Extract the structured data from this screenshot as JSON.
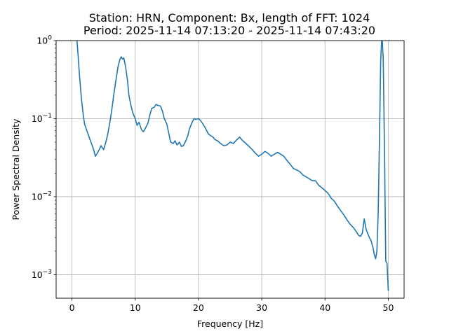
{
  "chart_data": {
    "type": "line",
    "title_line1": "Station: HRN, Component: Bx, length of FFT: 1024",
    "title_line2": "Period: 2025-11-14 07:13:20 - 2025-11-14 07:43:20",
    "xlabel": "Frequency [Hz]",
    "ylabel": "Power Spectral Density",
    "xscale": "linear",
    "yscale": "log",
    "xlim": [
      -2.5,
      52.5
    ],
    "ylim": [
      0.0005,
      1
    ],
    "grid": true,
    "line_color": "#1f77b4",
    "xticks": [
      {
        "value": 0,
        "label": "0"
      },
      {
        "value": 10,
        "label": "10"
      },
      {
        "value": 20,
        "label": "20"
      },
      {
        "value": 30,
        "label": "30"
      },
      {
        "value": 40,
        "label": "40"
      },
      {
        "value": 50,
        "label": "50"
      }
    ],
    "yticks": [
      {
        "value": 0.001,
        "base": "10",
        "exp": "−3"
      },
      {
        "value": 0.01,
        "base": "10",
        "exp": "−2"
      },
      {
        "value": 0.1,
        "base": "10",
        "exp": "−1"
      },
      {
        "value": 1,
        "base": "10",
        "exp": "0"
      }
    ],
    "series": [
      {
        "x": [
          0.8,
          1.0,
          1.2,
          1.5,
          1.8,
          2.0,
          2.5,
          3.0,
          3.3,
          3.5,
          3.7,
          4.0,
          4.3,
          4.6,
          5.0,
          5.3,
          5.6,
          6.0,
          6.3,
          6.6,
          7.0,
          7.3,
          7.6,
          7.8,
          8.0,
          8.2,
          8.5,
          8.8,
          9.0,
          9.3,
          9.6,
          10.0,
          10.3,
          10.6,
          11.0,
          11.3,
          11.6,
          12.0,
          12.3,
          12.6,
          13.0,
          13.3,
          13.6,
          14.0,
          14.3,
          14.6,
          15.0,
          15.3,
          15.6,
          16.0,
          16.3,
          16.6,
          17.0,
          17.3,
          17.6,
          18.0,
          18.3,
          18.6,
          19.0,
          19.3,
          19.6,
          20.0,
          20.3,
          20.6,
          21.0,
          21.3,
          21.6,
          22.0,
          22.3,
          22.6,
          23.0,
          23.5,
          24.0,
          24.5,
          25.0,
          25.5,
          26.0,
          26.5,
          27.0,
          27.5,
          28.0,
          28.5,
          29.0,
          29.5,
          30.0,
          30.5,
          31.0,
          31.5,
          32.0,
          32.5,
          33.0,
          33.5,
          34.0,
          34.5,
          35.0,
          35.5,
          36.0,
          36.5,
          37.0,
          37.5,
          38.0,
          38.5,
          39.0,
          39.5,
          40.0,
          40.5,
          41.0,
          41.5,
          42.0,
          42.5,
          43.0,
          43.5,
          44.0,
          44.5,
          45.0,
          45.3,
          45.6,
          45.9,
          46.2,
          46.5,
          47.0,
          47.3,
          47.6,
          47.8,
          48.0,
          48.2,
          48.4,
          48.6,
          48.8,
          49.0,
          49.2,
          49.4,
          49.6,
          49.8,
          50.0
        ],
        "y": [
          1.0,
          0.6,
          0.35,
          0.18,
          0.11,
          0.085,
          0.065,
          0.05,
          0.043,
          0.038,
          0.033,
          0.036,
          0.04,
          0.045,
          0.04,
          0.048,
          0.06,
          0.09,
          0.13,
          0.2,
          0.33,
          0.47,
          0.58,
          0.62,
          0.58,
          0.6,
          0.45,
          0.3,
          0.2,
          0.15,
          0.12,
          0.1,
          0.082,
          0.09,
          0.072,
          0.068,
          0.075,
          0.087,
          0.11,
          0.135,
          0.14,
          0.152,
          0.148,
          0.145,
          0.125,
          0.1,
          0.085,
          0.065,
          0.05,
          0.048,
          0.052,
          0.046,
          0.05,
          0.044,
          0.045,
          0.052,
          0.06,
          0.075,
          0.09,
          0.1,
          0.098,
          0.1,
          0.095,
          0.088,
          0.078,
          0.07,
          0.063,
          0.06,
          0.058,
          0.054,
          0.052,
          0.048,
          0.045,
          0.046,
          0.05,
          0.048,
          0.053,
          0.058,
          0.052,
          0.048,
          0.044,
          0.04,
          0.036,
          0.033,
          0.035,
          0.038,
          0.036,
          0.033,
          0.035,
          0.037,
          0.035,
          0.033,
          0.029,
          0.026,
          0.023,
          0.022,
          0.021,
          0.019,
          0.018,
          0.017,
          0.016,
          0.016,
          0.014,
          0.013,
          0.012,
          0.011,
          0.0095,
          0.0087,
          0.0075,
          0.0066,
          0.0058,
          0.005,
          0.0044,
          0.004,
          0.0035,
          0.0032,
          0.0031,
          0.0034,
          0.0052,
          0.0038,
          0.003,
          0.0027,
          0.0022,
          0.0018,
          0.0016,
          0.002,
          0.006,
          0.05,
          0.55,
          1.2,
          0.6,
          0.04,
          0.0015,
          0.0014,
          0.00063
        ]
      }
    ]
  }
}
